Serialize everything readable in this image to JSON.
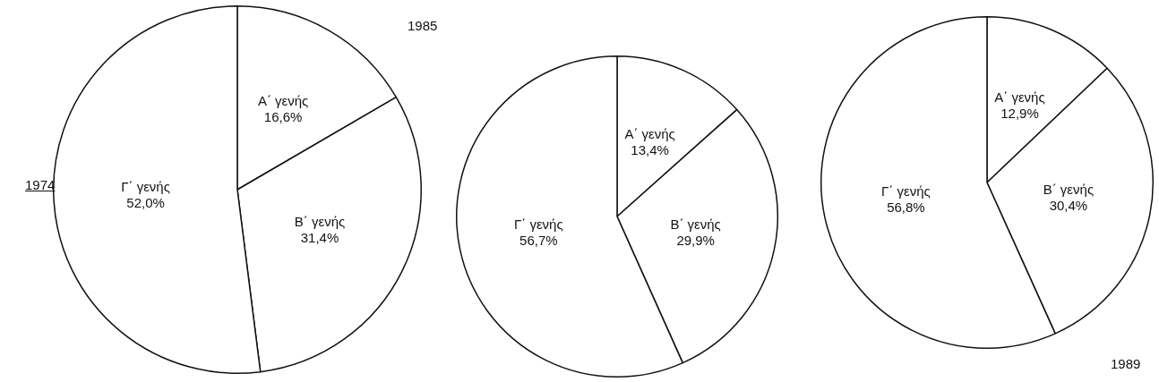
{
  "chart_data": [
    {
      "type": "pie",
      "title": "1974",
      "categories": [
        "Α΄ γενής",
        "Β΄ γενής",
        "Γ΄ γενής"
      ],
      "values": [
        16.6,
        31.4,
        52.0
      ],
      "value_labels": [
        "16,6%",
        "31,4%",
        "52,0%"
      ],
      "colors": [
        "#ffffff",
        "#ffffff",
        "#ffffff"
      ]
    },
    {
      "type": "pie",
      "title": "1985",
      "categories": [
        "Α΄ γενής",
        "Β΄ γενής",
        "Γ΄ γενής"
      ],
      "values": [
        13.4,
        29.9,
        56.7
      ],
      "value_labels": [
        "13,4%",
        "29,9%",
        "56,7%"
      ],
      "colors": [
        "#ffffff",
        "#ffffff",
        "#ffffff"
      ]
    },
    {
      "type": "pie",
      "title": "1989",
      "categories": [
        "Α΄ γενής",
        "Β΄ γενής",
        "Γ΄ γενής"
      ],
      "values": [
        12.9,
        30.4,
        56.8
      ],
      "value_labels": [
        "12,9%",
        "30,4%",
        "56,8%"
      ],
      "colors": [
        "#ffffff",
        "#ffffff",
        "#ffffff"
      ]
    }
  ]
}
